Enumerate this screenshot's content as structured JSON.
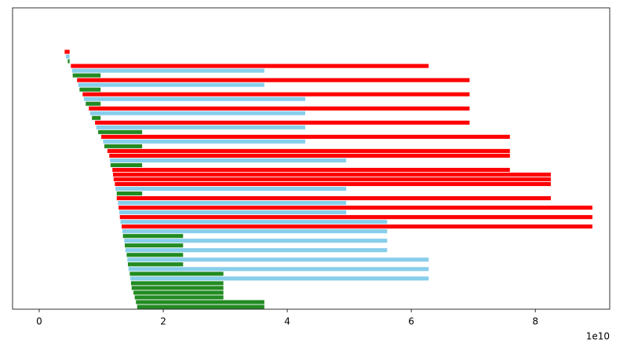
{
  "chart_data": {
    "type": "floating_barh",
    "x_offset_label": "1e10",
    "xlim": [
      -0.43,
      9.2
    ],
    "xticks": [
      0,
      2,
      4,
      6,
      8
    ],
    "bars": [
      {
        "color": "#ff0000",
        "start": 0.41,
        "end": 0.49
      },
      {
        "color": "#87ceeb",
        "start": 0.43,
        "end": 0.49
      },
      {
        "color": "#228b22",
        "start": 0.46,
        "end": 0.49
      },
      {
        "color": "#ff0000",
        "start": 0.51,
        "end": 6.28
      },
      {
        "color": "#87ceeb",
        "start": 0.53,
        "end": 3.63
      },
      {
        "color": "#228b22",
        "start": 0.54,
        "end": 0.99
      },
      {
        "color": "#ff0000",
        "start": 0.61,
        "end": 6.94
      },
      {
        "color": "#87ceeb",
        "start": 0.63,
        "end": 3.63
      },
      {
        "color": "#228b22",
        "start": 0.65,
        "end": 0.99
      },
      {
        "color": "#ff0000",
        "start": 0.7,
        "end": 6.94
      },
      {
        "color": "#87ceeb",
        "start": 0.72,
        "end": 4.29
      },
      {
        "color": "#228b22",
        "start": 0.75,
        "end": 0.99
      },
      {
        "color": "#ff0000",
        "start": 0.8,
        "end": 6.94
      },
      {
        "color": "#87ceeb",
        "start": 0.82,
        "end": 4.29
      },
      {
        "color": "#228b22",
        "start": 0.85,
        "end": 0.99
      },
      {
        "color": "#ff0000",
        "start": 0.9,
        "end": 6.94
      },
      {
        "color": "#87ceeb",
        "start": 0.92,
        "end": 4.29
      },
      {
        "color": "#228b22",
        "start": 0.95,
        "end": 1.66
      },
      {
        "color": "#ff0000",
        "start": 1.0,
        "end": 7.59
      },
      {
        "color": "#87ceeb",
        "start": 1.03,
        "end": 4.29
      },
      {
        "color": "#228b22",
        "start": 1.05,
        "end": 1.66
      },
      {
        "color": "#ff0000",
        "start": 1.1,
        "end": 7.59
      },
      {
        "color": "#ff0000",
        "start": 1.13,
        "end": 7.59
      },
      {
        "color": "#87ceeb",
        "start": 1.14,
        "end": 4.95
      },
      {
        "color": "#228b22",
        "start": 1.15,
        "end": 1.66
      },
      {
        "color": "#ff0000",
        "start": 1.18,
        "end": 7.59
      },
      {
        "color": "#ff0000",
        "start": 1.19,
        "end": 8.25
      },
      {
        "color": "#ff0000",
        "start": 1.2,
        "end": 8.25
      },
      {
        "color": "#ff0000",
        "start": 1.22,
        "end": 8.25
      },
      {
        "color": "#87ceeb",
        "start": 1.23,
        "end": 4.95
      },
      {
        "color": "#228b22",
        "start": 1.25,
        "end": 1.66
      },
      {
        "color": "#ff0000",
        "start": 1.25,
        "end": 8.25
      },
      {
        "color": "#87ceeb",
        "start": 1.27,
        "end": 4.95
      },
      {
        "color": "#ff0000",
        "start": 1.28,
        "end": 8.92
      },
      {
        "color": "#87ceeb",
        "start": 1.29,
        "end": 4.95
      },
      {
        "color": "#ff0000",
        "start": 1.3,
        "end": 8.92
      },
      {
        "color": "#87ceeb",
        "start": 1.31,
        "end": 5.61
      },
      {
        "color": "#ff0000",
        "start": 1.33,
        "end": 8.92
      },
      {
        "color": "#87ceeb",
        "start": 1.34,
        "end": 5.61
      },
      {
        "color": "#228b22",
        "start": 1.35,
        "end": 2.32
      },
      {
        "color": "#87ceeb",
        "start": 1.37,
        "end": 5.61
      },
      {
        "color": "#228b22",
        "start": 1.38,
        "end": 2.32
      },
      {
        "color": "#87ceeb",
        "start": 1.39,
        "end": 5.61
      },
      {
        "color": "#228b22",
        "start": 1.41,
        "end": 2.32
      },
      {
        "color": "#87ceeb",
        "start": 1.42,
        "end": 6.28
      },
      {
        "color": "#228b22",
        "start": 1.43,
        "end": 2.32
      },
      {
        "color": "#87ceeb",
        "start": 1.44,
        "end": 6.28
      },
      {
        "color": "#228b22",
        "start": 1.46,
        "end": 2.97
      },
      {
        "color": "#87ceeb",
        "start": 1.47,
        "end": 6.28
      },
      {
        "color": "#228b22",
        "start": 1.48,
        "end": 2.97
      },
      {
        "color": "#228b22",
        "start": 1.49,
        "end": 2.97
      },
      {
        "color": "#228b22",
        "start": 1.52,
        "end": 2.97
      },
      {
        "color": "#228b22",
        "start": 1.54,
        "end": 2.97
      },
      {
        "color": "#228b22",
        "start": 1.56,
        "end": 3.63
      },
      {
        "color": "#228b22",
        "start": 1.58,
        "end": 3.63
      }
    ]
  }
}
